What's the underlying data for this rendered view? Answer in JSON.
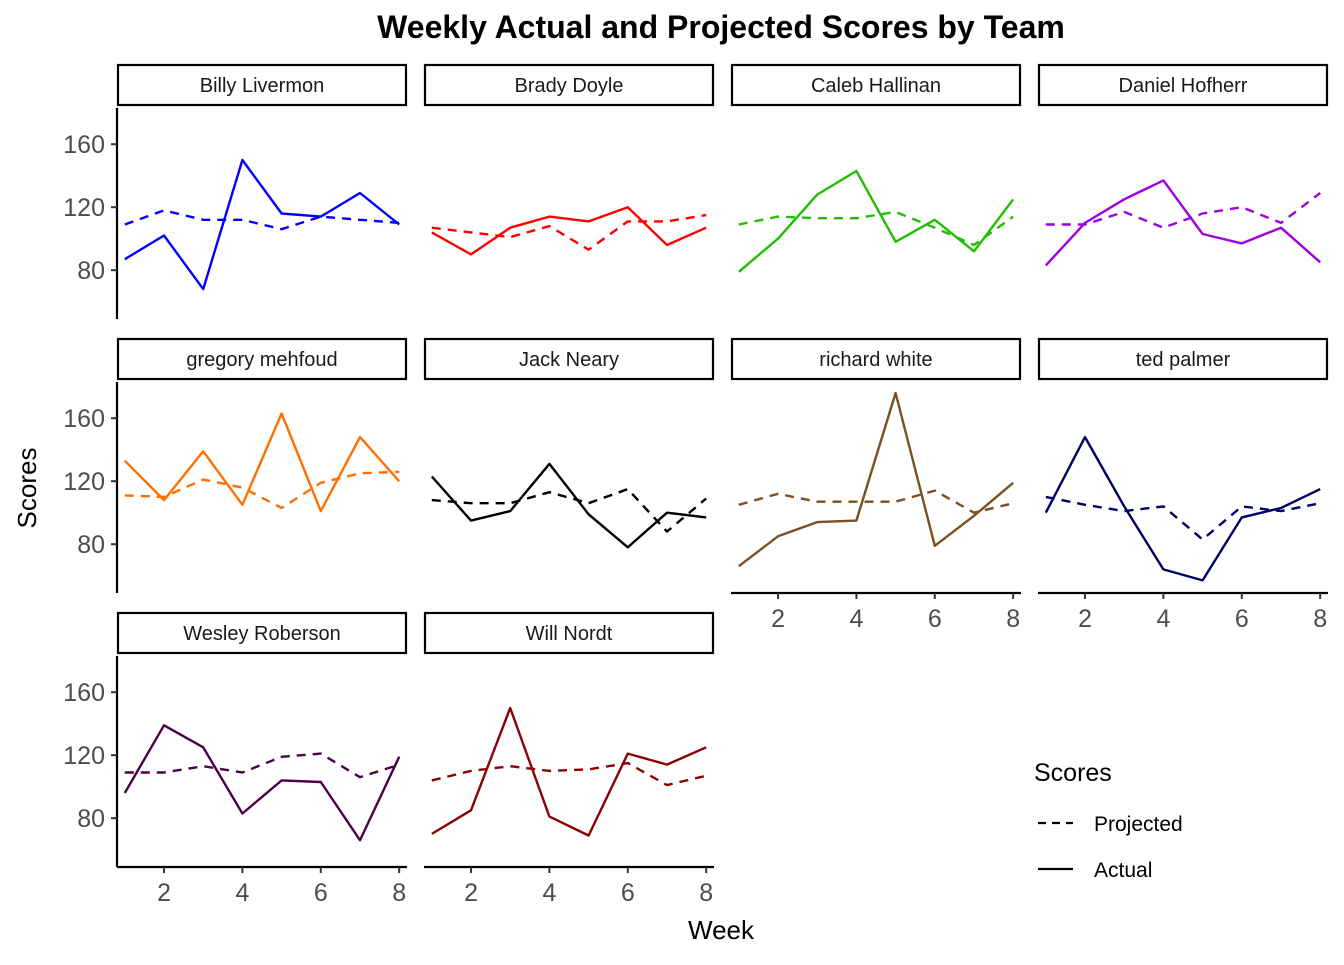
{
  "chart_data": {
    "type": "line",
    "title": "Weekly Actual and Projected Scores by Team",
    "xlabel": "Week",
    "ylabel": "Scores",
    "x_ticks": [
      2,
      4,
      6,
      8
    ],
    "y_ticks": [
      80,
      120,
      160
    ],
    "xlim": [
      0.8,
      8.2
    ],
    "ylim": [
      49,
      183
    ],
    "grid": false,
    "legend": {
      "title": "Scores",
      "placement": "bottom-right",
      "entries": [
        {
          "label": "Projected",
          "style": "dashed"
        },
        {
          "label": "Actual",
          "style": "solid"
        }
      ]
    },
    "weeks": [
      1,
      2,
      3,
      4,
      5,
      6,
      7,
      8
    ],
    "panels": [
      {
        "name": "Billy Livermon",
        "color": "#0000ff",
        "actual": [
          87,
          102,
          68,
          150,
          116,
          114,
          129,
          109
        ],
        "projected": [
          109,
          118,
          112,
          112,
          106,
          114,
          112,
          110
        ]
      },
      {
        "name": "Brady Doyle",
        "color": "#ff0000",
        "actual": [
          104,
          90,
          107,
          114,
          111,
          120,
          96,
          107
        ],
        "projected": [
          107,
          104,
          101,
          108,
          93,
          111,
          111,
          115
        ]
      },
      {
        "name": "Caleb Hallinan",
        "color": "#1fbf00",
        "actual": [
          79,
          100,
          128,
          143,
          98,
          112,
          92,
          125
        ],
        "projected": [
          109,
          114,
          113,
          113,
          117,
          107,
          96,
          114
        ]
      },
      {
        "name": "Daniel Hofherr",
        "color": "#9f00df",
        "actual": [
          83,
          110,
          125,
          137,
          103,
          97,
          107,
          85
        ],
        "projected": [
          109,
          109,
          117,
          107,
          116,
          120,
          110,
          129
        ]
      },
      {
        "name": "gregory mehfoud",
        "color": "#ff7000",
        "actual": [
          133,
          108,
          139,
          105,
          163,
          101,
          148,
          120
        ],
        "projected": [
          111,
          110,
          121,
          116,
          103,
          119,
          125,
          126
        ]
      },
      {
        "name": "Jack Neary",
        "color": "#000000",
        "actual": [
          123,
          95,
          101,
          131,
          99,
          78,
          100,
          97
        ],
        "projected": [
          108,
          106,
          106,
          113,
          106,
          115,
          88,
          109
        ]
      },
      {
        "name": "richard white",
        "color": "#7a5022",
        "actual": [
          66,
          85,
          94,
          95,
          176,
          79,
          98,
          119
        ],
        "projected": [
          105,
          112,
          107,
          107,
          107,
          114,
          100,
          106
        ]
      },
      {
        "name": "ted palmer",
        "color": "#000066",
        "actual": [
          100,
          148,
          104,
          64,
          57,
          97,
          103,
          115
        ],
        "projected": [
          110,
          105,
          101,
          104,
          83,
          104,
          101,
          106
        ]
      },
      {
        "name": "Wesley Roberson",
        "color": "#4a0046",
        "actual": [
          96,
          139,
          125,
          83,
          104,
          103,
          66,
          119
        ],
        "projected": [
          109,
          109,
          113,
          109,
          119,
          121,
          106,
          114
        ]
      },
      {
        "name": "Will Nordt",
        "color": "#8b0000",
        "actual": [
          70,
          85,
          150,
          81,
          69,
          121,
          114,
          125
        ],
        "projected": [
          104,
          110,
          113,
          110,
          111,
          115,
          101,
          107
        ]
      }
    ]
  }
}
